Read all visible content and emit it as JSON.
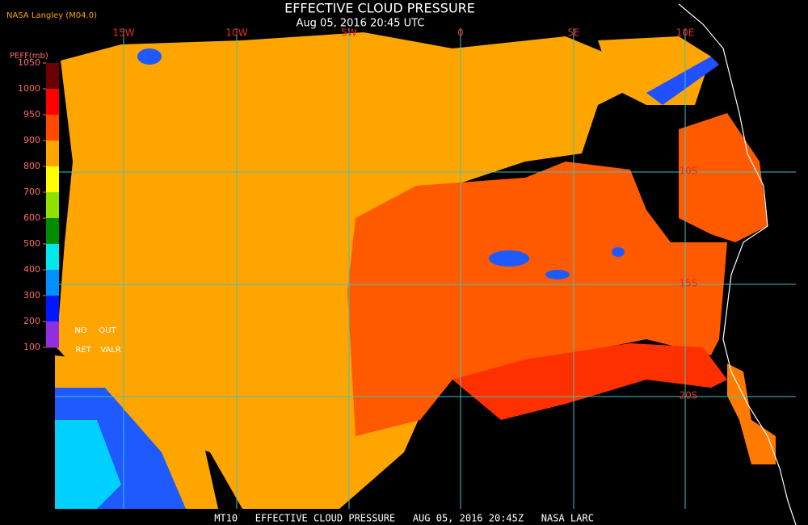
{
  "header": {
    "title": "EFFECTIVE CLOUD PRESSURE",
    "subtitle": "Aug 05, 2016 20:45 UTC",
    "source": "NASA Langley (M04.0)"
  },
  "map": {
    "lon_labels": [
      "15W",
      "10W",
      "5W",
      "0",
      "5E",
      "10E"
    ],
    "lat_labels": [
      "10S",
      "15S",
      "20S"
    ],
    "grid_color": "#40c0c0",
    "label_color": "#e03020"
  },
  "legend": {
    "title": "PEFF(mb)",
    "ticks": [
      1050,
      1000,
      950,
      900,
      800,
      700,
      600,
      500,
      400,
      300,
      200,
      100
    ],
    "colors": [
      "#6a0000",
      "#ff0000",
      "#ff4a00",
      "#ffa500",
      "#ffff00",
      "#90e000",
      "#008c00",
      "#00e8e8",
      "#0090ff",
      "#0018ff",
      "#9030e0"
    ],
    "notes": [
      "NO",
      "OUT",
      "RET",
      "VALR"
    ]
  },
  "footer": "MT10   EFFECTIVE CLOUD PRESSURE   AUG 05, 2016 20:45Z   NASA LARC"
}
